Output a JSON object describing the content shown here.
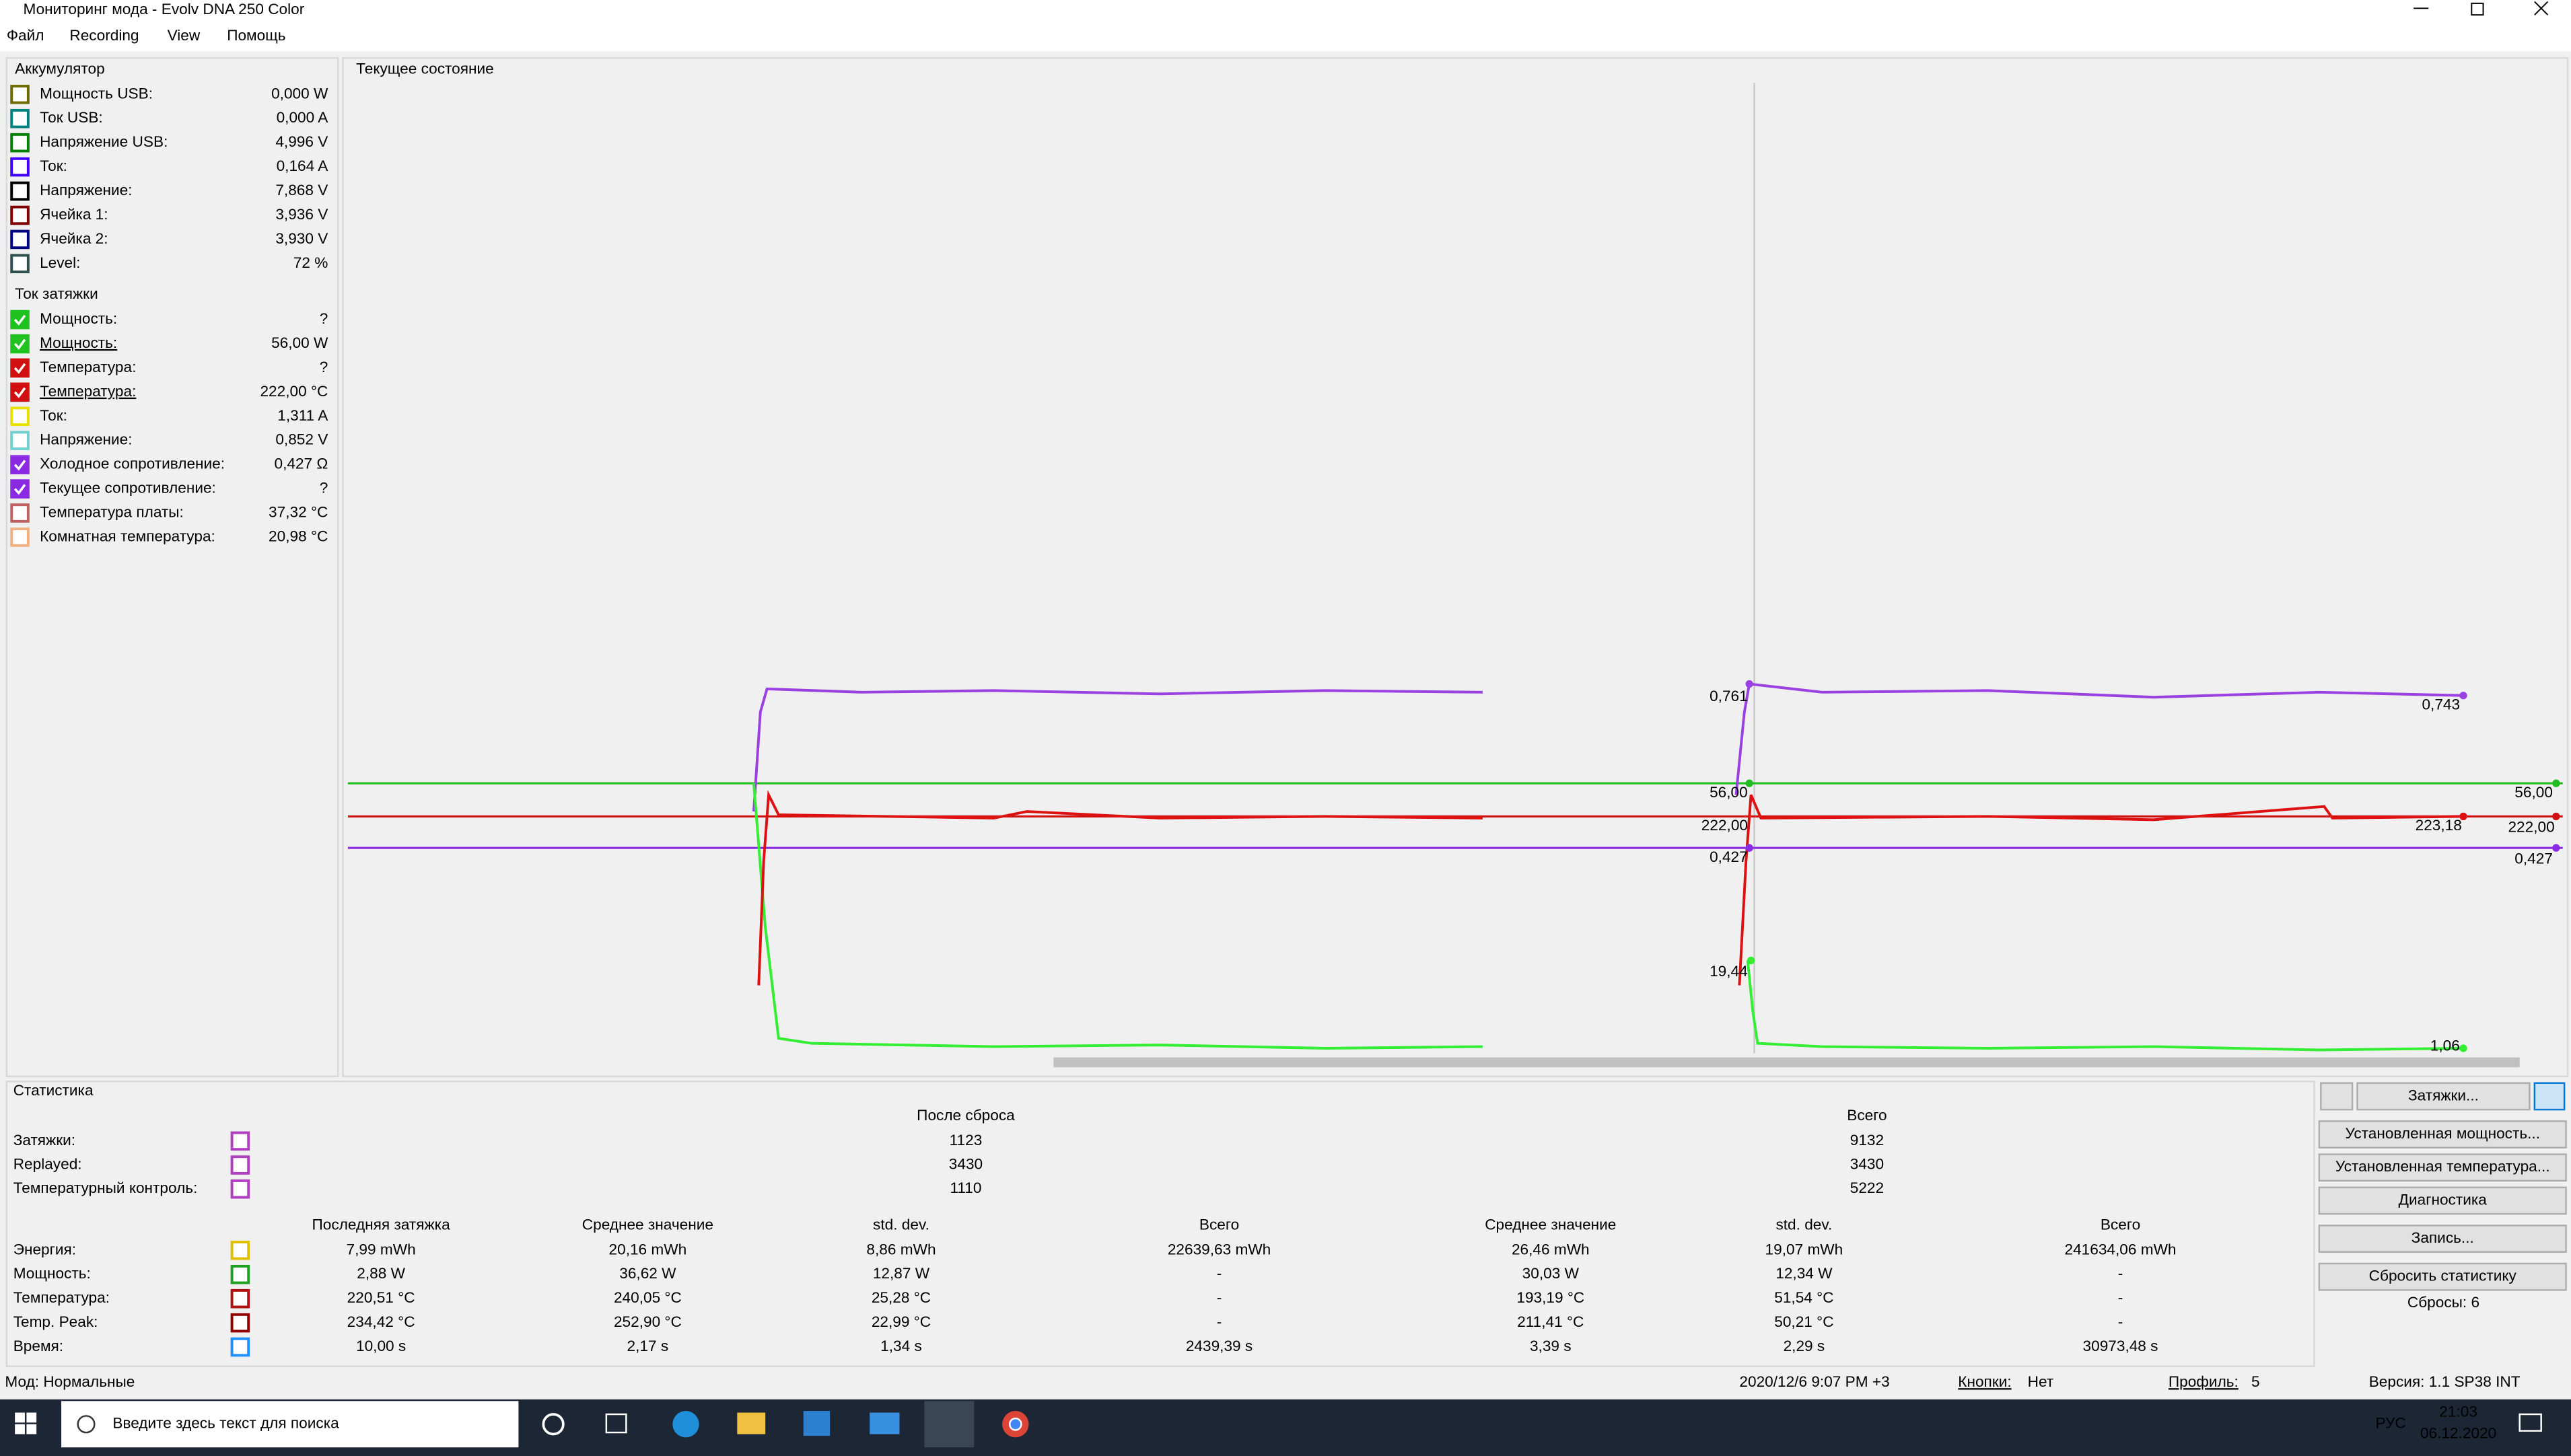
{
  "window": {
    "title": "Мониторинг мода - Evolv DNA 250 Color",
    "menu": [
      "Файл",
      "Recording",
      "View",
      "Помощь"
    ]
  },
  "battery": {
    "title": "Аккумулятор",
    "rows": [
      {
        "label": "Мощность USB:",
        "value": "0,000 W",
        "color": "#6b6b00"
      },
      {
        "label": "Ток USB:",
        "value": "0,000 A",
        "color": "#008080"
      },
      {
        "label": "Напряжение USB:",
        "value": "4,996 V",
        "color": "#008000"
      },
      {
        "label": "Ток:",
        "value": "0,164 A",
        "color": "#4000ff"
      },
      {
        "label": "Напряжение:",
        "value": "7,868 V",
        "color": "#000000"
      },
      {
        "label": "Ячейка 1:",
        "value": "3,936 V",
        "color": "#800000"
      },
      {
        "label": "Ячейка 2:",
        "value": "3,930 V",
        "color": "#000080"
      },
      {
        "label": "Level:",
        "value": "72 %",
        "color": "#2f4f4f"
      }
    ]
  },
  "puff": {
    "title": "Ток затяжки",
    "rows": [
      {
        "label": "Мощность:",
        "value": "?",
        "color": "#1fc21f",
        "checked": true
      },
      {
        "label": "Мощность:",
        "value": "56,00 W",
        "color": "#1fc21f",
        "checked": true,
        "link": true
      },
      {
        "label": "Температура:",
        "value": "?",
        "color": "#d01010",
        "checked": true
      },
      {
        "label": "Температура:",
        "value": "222,00 °C",
        "color": "#d01010",
        "checked": true,
        "link": true
      },
      {
        "label": "Ток:",
        "value": "1,311 A",
        "color": "#e8e000",
        "checked": false
      },
      {
        "label": "Напряжение:",
        "value": "0,852 V",
        "color": "#70d0d0",
        "checked": false
      },
      {
        "label": "Холодное сопротивление:",
        "value": "0,427 Ω",
        "color": "#8a2be2",
        "checked": true
      },
      {
        "label": "Текущее сопротивление:",
        "value": "?",
        "color": "#8a2be2",
        "checked": true
      },
      {
        "label": "Температура платы:",
        "value": "37,32 °C",
        "color": "#c06060",
        "checked": false
      },
      {
        "label": "Комнатная температура:",
        "value": "20,98 °C",
        "color": "#f0b080",
        "checked": false
      }
    ]
  },
  "graph": {
    "title": "Текущее состояние",
    "labels": [
      "0,761",
      "56,00",
      "222,00",
      "0,427",
      "19,44",
      "0,743",
      "223,18",
      "1,06",
      "56,00",
      "222,00",
      "0,427"
    ]
  },
  "stats": {
    "title": "Статистика",
    "reset_header": "После сброса",
    "total_header": "Всего",
    "counters": [
      {
        "label": "Затяжки:",
        "color": "#b040c0",
        "reset": "1123",
        "total": "9132"
      },
      {
        "label": "Replayed:",
        "color": "#b040c0",
        "reset": "3430",
        "total": "3430"
      },
      {
        "label": "Температурный контроль:",
        "color": "#b040c0",
        "reset": "1110",
        "total": "5222"
      }
    ],
    "columns": [
      "Последняя затяжка",
      "Среднее значение",
      "std. dev.",
      "Всего",
      "Среднее значение",
      "std. dev.",
      "Всего"
    ],
    "rows": [
      {
        "label": "Энергия:",
        "color": "#e0c000",
        "cells": [
          "7,99 mWh",
          "20,16 mWh",
          "8,86 mWh",
          "22639,63 mWh",
          "26,46 mWh",
          "19,07 mWh",
          "241634,06 mWh"
        ]
      },
      {
        "label": "Мощность:",
        "color": "#20a020",
        "cells": [
          "2,88 W",
          "36,62 W",
          "12,87 W",
          "-",
          "30,03 W",
          "12,34 W",
          "-"
        ]
      },
      {
        "label": "Температура:",
        "color": "#b01010",
        "cells": [
          "220,51 °C",
          "240,05 °C",
          "25,28 °C",
          "-",
          "193,19 °C",
          "51,54 °C",
          "-"
        ]
      },
      {
        "label": "Temp. Peak:",
        "color": "#900000",
        "cells": [
          "234,42 °C",
          "252,90 °C",
          "22,99 °C",
          "-",
          "211,41 °C",
          "50,21 °C",
          "-"
        ]
      },
      {
        "label": "Время:",
        "color": "#1e90ff",
        "cells": [
          "10,00 s",
          "2,17 s",
          "1,34 s",
          "2439,39 s",
          "3,39 s",
          "2,29 s",
          "30973,48 s"
        ]
      }
    ]
  },
  "buttons": {
    "puffs": "Затяжки...",
    "list": [
      "Установленная мощность...",
      "Установленная температура...",
      "Диагностика",
      "Запись...",
      "Сбросить статистику"
    ],
    "resets": "Сбросы: 6"
  },
  "status": {
    "mode": "Мод: Нормальные",
    "datetime": "2020/12/6 9:07 PM +3",
    "buttons_label": "Кнопки:",
    "buttons_value": "Нет",
    "profile_label": "Профиль:",
    "profile_value": "5",
    "version": "Версия: 1.1 SP38 INT"
  },
  "taskbar": {
    "search": "Введите здесь текст для поиска",
    "lang": "РУС",
    "time": "21:03",
    "date": "06.12.2020"
  }
}
